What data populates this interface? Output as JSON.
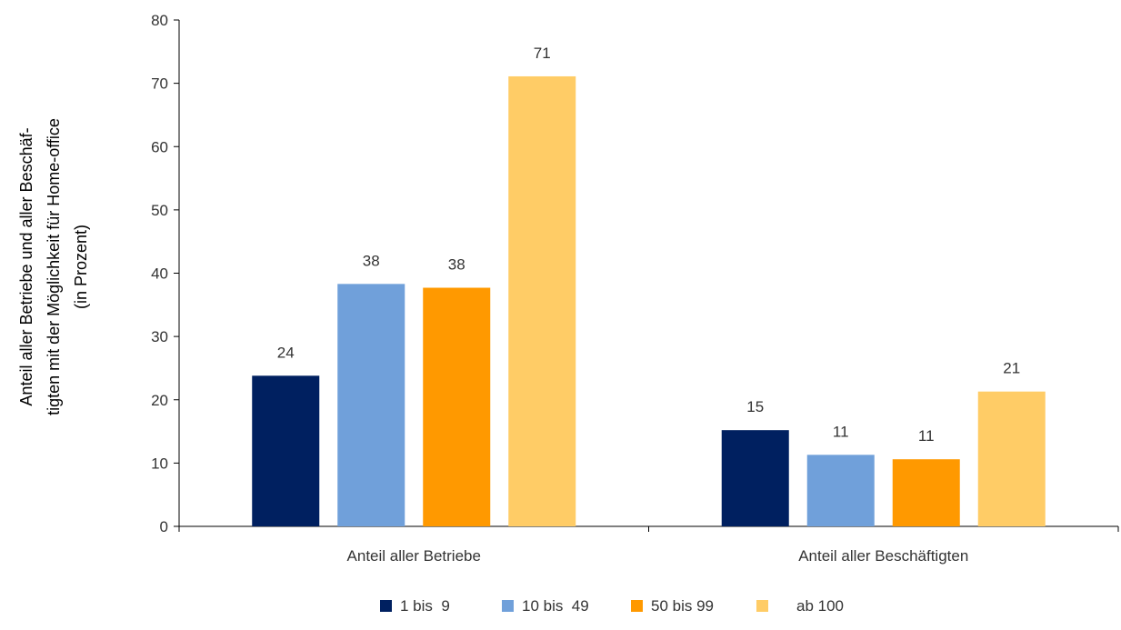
{
  "chart_data": {
    "type": "bar",
    "ylabel_lines": [
      "Anteil aller Betriebe und aller Beschäf-",
      "tigten mit der Möglichkeit für Home-office",
      "(in Prozent)"
    ],
    "categories": [
      "Anteil aller Betriebe",
      "Anteil aller Beschäftigten"
    ],
    "series": [
      {
        "name": "1 bis  9",
        "color": "#002060",
        "values": [
          24,
          15
        ],
        "plot_values": [
          23.8,
          15.2
        ]
      },
      {
        "name": "10 bis  49",
        "color": "#70A0DA",
        "values": [
          38,
          11
        ],
        "plot_values": [
          38.3,
          11.3
        ]
      },
      {
        "name": "50 bis 99",
        "color": "#FF9900",
        "values": [
          38,
          11
        ],
        "plot_values": [
          37.7,
          10.6
        ]
      },
      {
        "name": "ab 100",
        "color": "#FFCC66",
        "values": [
          71,
          21
        ],
        "plot_values": [
          71.1,
          21.3
        ]
      }
    ],
    "yticks": [
      0,
      10,
      20,
      30,
      40,
      50,
      60,
      70,
      80
    ],
    "ylim": [
      0,
      80
    ],
    "grid": false,
    "legend_position": "bottom"
  }
}
